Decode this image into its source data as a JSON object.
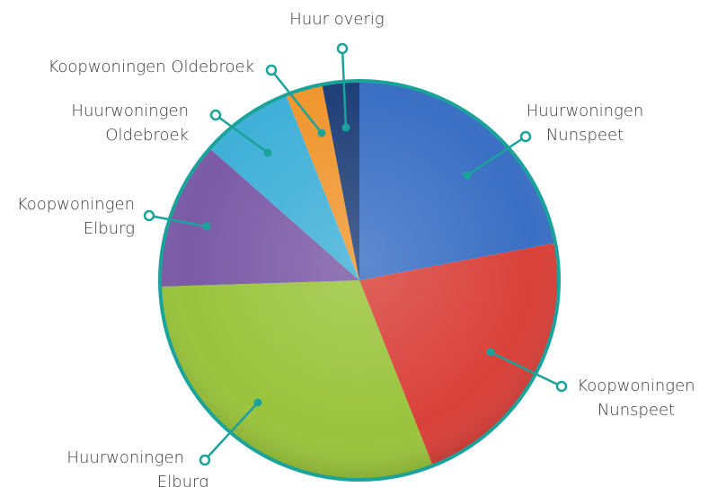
{
  "chart_data": {
    "type": "pie",
    "categories": [
      "Huurwoningen Nunspeet",
      "Koopwoningen Nunspeet",
      "Huurwoningen Elburg",
      "Koopwoningen Elburg",
      "Huurwoningen Oldebroek",
      "Koopwoningen Oldebroek",
      "Huur overig"
    ],
    "values": [
      22,
      22,
      30.5,
      12,
      7.5,
      3,
      3
    ],
    "colors": [
      "#3a6fc4",
      "#d9413a",
      "#9ac43c",
      "#7b5aa6",
      "#3fb0d8",
      "#f0962e",
      "#1f3f78"
    ],
    "legend": false
  }
}
